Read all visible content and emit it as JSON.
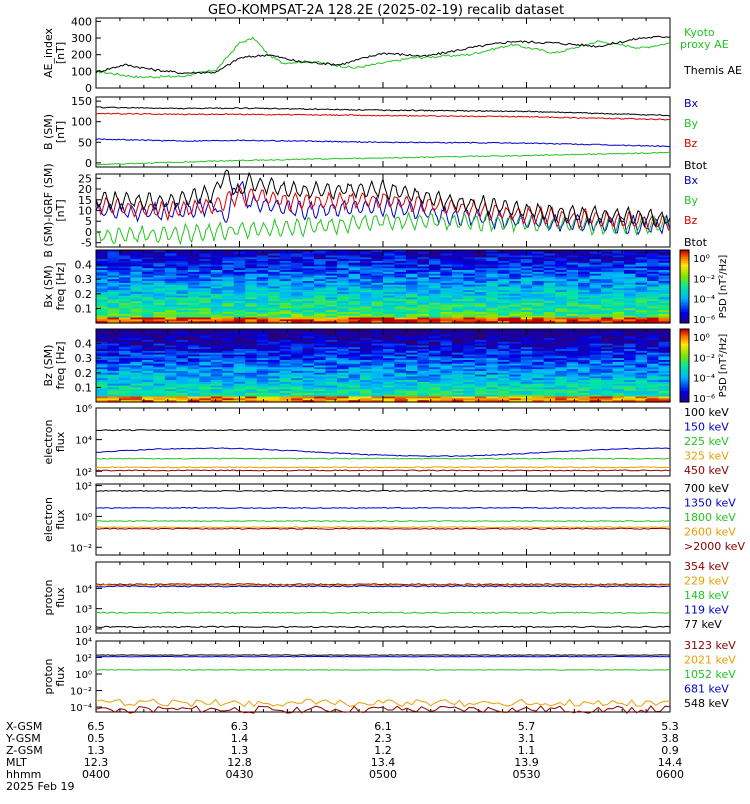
{
  "title": "GEO-KOMPSAT-2A 128.2E (2025-02-19) recalib dataset",
  "chart_data": [
    {
      "type": "line",
      "ylabel": "AE_index [nT]",
      "yticks": [
        "0",
        "100",
        "200",
        "300",
        "400"
      ],
      "ylim": [
        0,
        420
      ],
      "x_hours": [
        4.0,
        6.0
      ],
      "series": [
        {
          "name": "Kyoto proxy AE",
          "color": "#22c422",
          "x": [
            4.0,
            4.15,
            4.3,
            4.42,
            4.5,
            4.55,
            4.6,
            4.65,
            4.75,
            4.9,
            5.1,
            5.3,
            5.45,
            5.6,
            5.75,
            5.9,
            6.0
          ],
          "y": [
            100,
            65,
            70,
            110,
            270,
            300,
            200,
            150,
            160,
            120,
            180,
            200,
            260,
            210,
            280,
            240,
            270
          ]
        },
        {
          "name": "Themis AE",
          "color": "#000000",
          "x": [
            4.0,
            4.1,
            4.2,
            4.3,
            4.42,
            4.5,
            4.6,
            4.7,
            4.85,
            5.0,
            5.15,
            5.3,
            5.45,
            5.6,
            5.75,
            5.9,
            6.0
          ],
          "y": [
            95,
            140,
            110,
            90,
            95,
            180,
            200,
            160,
            140,
            210,
            190,
            240,
            280,
            270,
            250,
            300,
            310
          ]
        }
      ]
    },
    {
      "type": "line",
      "ylabel": "B (SM) [nT]",
      "yticks": [
        "0",
        "50",
        "100",
        "150"
      ],
      "ylim": [
        -10,
        160
      ],
      "x_hours": [
        4.0,
        6.0
      ],
      "series": [
        {
          "name": "Bx",
          "color": "#0000cc",
          "x": [
            4.0,
            4.3,
            4.5,
            5.0,
            5.5,
            6.0
          ],
          "y": [
            58,
            53,
            55,
            50,
            48,
            40
          ]
        },
        {
          "name": "By",
          "color": "#22c422",
          "x": [
            4.0,
            4.3,
            4.5,
            5.0,
            5.5,
            6.0
          ],
          "y": [
            -4,
            2,
            6,
            12,
            18,
            25
          ]
        },
        {
          "name": "Bz",
          "color": "#dd0000",
          "x": [
            4.0,
            4.3,
            4.5,
            5.0,
            5.5,
            6.0
          ],
          "y": [
            120,
            118,
            118,
            115,
            112,
            105
          ]
        },
        {
          "name": "Btot",
          "color": "#000000",
          "x": [
            4.0,
            4.3,
            4.5,
            5.0,
            5.5,
            6.0
          ],
          "y": [
            135,
            132,
            133,
            128,
            125,
            115
          ]
        }
      ]
    },
    {
      "type": "line",
      "ylabel": "B (SM)-IGRF (SM) [nT]",
      "yticks": [
        "-5",
        "0",
        "5",
        "10",
        "15",
        "20",
        "25"
      ],
      "ylim": [
        -7,
        27
      ],
      "x_hours": [
        4.0,
        6.0
      ],
      "series": [
        {
          "name": "Bx",
          "color": "#0000cc",
          "x": [
            4.0,
            4.25,
            4.4,
            4.5,
            4.7,
            5.0,
            5.2,
            5.5,
            5.75,
            6.0
          ],
          "y": [
            10,
            9,
            12,
            15,
            10,
            12,
            8,
            5,
            4,
            3
          ]
        },
        {
          "name": "By",
          "color": "#22c422",
          "x": [
            4.0,
            4.25,
            4.4,
            4.5,
            4.7,
            5.0,
            5.2,
            5.5,
            5.75,
            6.0
          ],
          "y": [
            -2,
            -1,
            0,
            1,
            2,
            5,
            5,
            4,
            3,
            3
          ]
        },
        {
          "name": "Bz",
          "color": "#dd0000",
          "x": [
            4.0,
            4.25,
            4.4,
            4.5,
            4.7,
            5.0,
            5.2,
            5.5,
            5.75,
            6.0
          ],
          "y": [
            12,
            10,
            12,
            17,
            14,
            15,
            12,
            8,
            6,
            4
          ]
        },
        {
          "name": "Btot",
          "color": "#000000",
          "x": [
            4.0,
            4.25,
            4.4,
            4.5,
            4.7,
            5.0,
            5.2,
            5.5,
            5.75,
            6.0
          ],
          "y": [
            15,
            14,
            18,
            24,
            19,
            20,
            15,
            10,
            8,
            6
          ]
        }
      ]
    },
    {
      "type": "heatmap",
      "ylabel": "Bx (SM) freq [Hz]",
      "yticks": [
        "0.1",
        "0.2",
        "0.3",
        "0.4"
      ],
      "ylim": [
        0,
        0.5
      ],
      "colorbar_label": "PSD [nT²/Hz]",
      "colorbar_ticks": [
        "10⁰",
        "10⁻²",
        "10⁻⁴",
        "10⁻⁶"
      ],
      "colorbar_top_tick": "10⁰"
    },
    {
      "type": "heatmap",
      "ylabel": "Bz (SM) freq [Hz]",
      "yticks": [
        "0.1",
        "0.2",
        "0.3",
        "0.4"
      ],
      "ylim": [
        0,
        0.5
      ],
      "colorbar_label": "PSD [nT²/Hz]",
      "colorbar_ticks": [
        "10⁰",
        "10⁻²",
        "10⁻⁴",
        "10⁻⁶"
      ]
    },
    {
      "type": "line",
      "scale": "log",
      "ylabel": "electron flux",
      "yticks": [
        "10²",
        "10⁴",
        "10⁶"
      ],
      "ylim_log": [
        1.7,
        6.0
      ],
      "series": [
        {
          "name": "100 keV",
          "color": "#000000",
          "level": 4.6
        },
        {
          "name": "150 keV",
          "color": "#0000cc",
          "level": 3.2
        },
        {
          "name": "225 keV",
          "color": "#22c422",
          "level": 2.8
        },
        {
          "name": "325 keV",
          "color": "#e8a000",
          "level": 2.25
        },
        {
          "name": "450 keV",
          "color": "#8b0000",
          "level": 2.05
        }
      ]
    },
    {
      "type": "line",
      "scale": "log",
      "ylabel": "electron flux",
      "yticks": [
        "10⁻²",
        "10⁰",
        "10²"
      ],
      "ylim_log": [
        -2.5,
        2.1
      ],
      "series": [
        {
          "name": "700 keV",
          "color": "#000000",
          "level": 1.65
        },
        {
          "name": "1350 keV",
          "color": "#0000cc",
          "level": 0.55
        },
        {
          "name": "1800 keV",
          "color": "#22c422",
          "level": -0.3
        },
        {
          "name": "2600 keV",
          "color": "#e8a000",
          "level": -0.7
        },
        {
          "name": ">2000 keV",
          "color": "#8b0000",
          "level": -0.8
        }
      ]
    },
    {
      "type": "line",
      "scale": "log",
      "ylabel": "proton flux",
      "yticks": [
        "10²",
        "10³",
        "10⁴"
      ],
      "ylim_log": [
        1.8,
        5.3
      ],
      "series": [
        {
          "name": "354 keV",
          "color": "#8b0000",
          "level": 4.2
        },
        {
          "name": "229 keV",
          "color": "#e8a000",
          "level": 4.15
        },
        {
          "name": "148 keV",
          "color": "#22c422",
          "level": 2.8
        },
        {
          "name": "119 keV",
          "color": "#0000cc",
          "level": 4.1
        },
        {
          "name": "77 keV",
          "color": "#000000",
          "level": 2.1
        }
      ]
    },
    {
      "type": "line",
      "scale": "log",
      "ylabel": "proton flux",
      "yticks": [
        "10⁻⁴",
        "10⁻²",
        "10⁰",
        "10²",
        "10⁴"
      ],
      "ylim_log": [
        -4.6,
        4.0
      ],
      "series": [
        {
          "name": "3123 keV",
          "color": "#8b0000",
          "level": -4.3
        },
        {
          "name": "2021 keV",
          "color": "#e8a000",
          "level": -3.5
        },
        {
          "name": "1052 keV",
          "color": "#22c422",
          "level": 0.5
        },
        {
          "name": "681 keV",
          "color": "#0000cc",
          "level": 2.1
        },
        {
          "name": "548 keV",
          "color": "#000000",
          "level": 2.3
        }
      ]
    }
  ],
  "xaxis": {
    "row_labels": [
      "X-GSM",
      "Y-GSM",
      "Z-GSM",
      "MLT",
      "hhmm",
      "2025 Feb 19"
    ],
    "columns": [
      [
        "6.5",
        "0.5",
        "1.3",
        "12.3",
        "0400"
      ],
      [
        "6.3",
        "1.4",
        "1.3",
        "12.8",
        "0430"
      ],
      [
        "6.1",
        "2.3",
        "1.2",
        "13.4",
        "0500"
      ],
      [
        "5.7",
        "3.1",
        "1.1",
        "13.9",
        "0530"
      ],
      [
        "5.3",
        "3.8",
        "0.9",
        "14.4",
        "0600"
      ]
    ]
  }
}
